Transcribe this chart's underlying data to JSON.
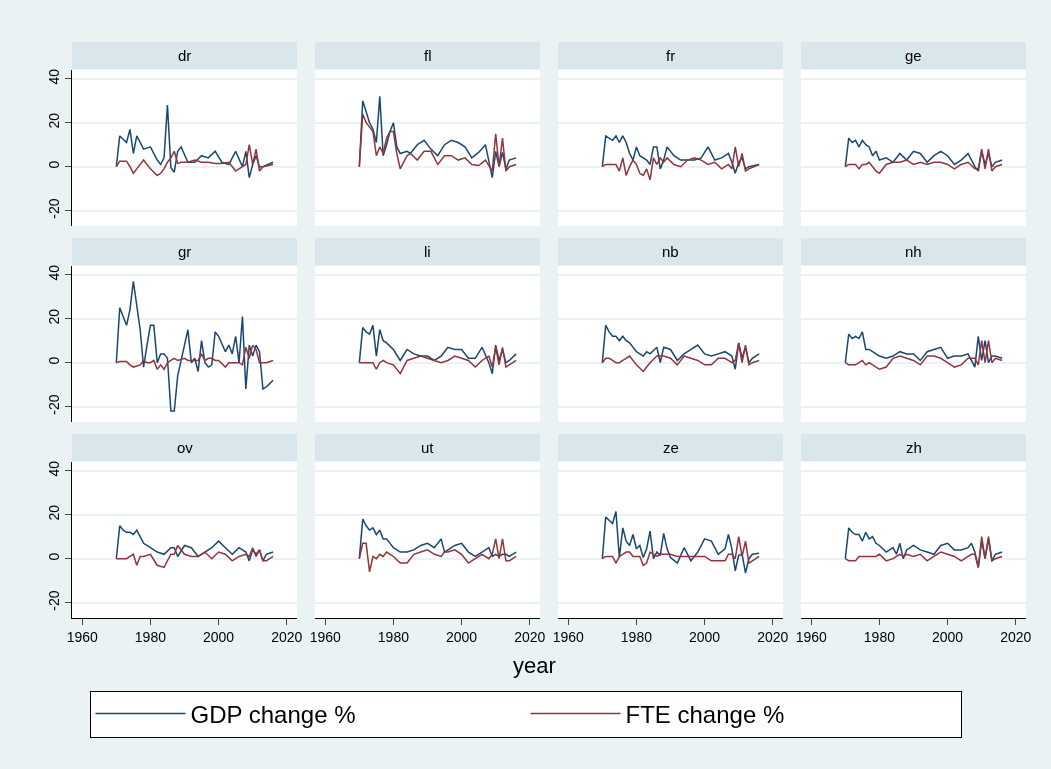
{
  "chart_data": [
    {
      "type": "line",
      "title": "dr",
      "tick_labels": "y",
      "grid": "y",
      "legend": "bottom",
      "xlim": [
        1957,
        2023
      ],
      "ylim": [
        -27,
        44
      ],
      "xticks": [
        1960,
        1980,
        2000,
        2020
      ],
      "yticks": [
        -20,
        0,
        20,
        40
      ],
      "x": [
        1970,
        1971,
        1973,
        1974,
        1975,
        1976,
        1978,
        1980,
        1982,
        1983,
        1984,
        1985,
        1986,
        1987,
        1988,
        1989,
        1991,
        1993,
        1995,
        1997,
        1999,
        2001,
        2003,
        2005,
        2007,
        2008,
        2009,
        2010,
        2011,
        2012,
        2013,
        2016
      ],
      "series": [
        {
          "name": "GDP change %",
          "color": "#1a476f",
          "values": [
            0,
            14,
            11,
            17,
            6,
            14,
            8,
            9,
            3,
            1,
            4,
            28,
            -0.5,
            -2.5,
            7,
            9,
            2,
            2,
            5,
            4,
            7,
            2,
            1,
            7,
            0,
            7,
            -5,
            1,
            5,
            0,
            0,
            2
          ]
        },
        {
          "name": "FTE change %",
          "color": "#90353b",
          "values": [
            0,
            2.5,
            2.5,
            0,
            -3,
            -1,
            3,
            -1,
            -4,
            -3,
            -1,
            2,
            4,
            7,
            1.5,
            2,
            2,
            3,
            2,
            2,
            1.5,
            1.5,
            2,
            -2,
            0,
            1,
            10,
            1,
            8,
            -2,
            0,
            1
          ]
        }
      ]
    },
    {
      "type": "line",
      "title": "fl",
      "tick_labels": false,
      "grid": "y",
      "xlim": [
        1957,
        2023
      ],
      "ylim": [
        -27,
        44
      ],
      "xticks": [
        1960,
        1980,
        2000,
        2020
      ],
      "yticks": [
        -20,
        0,
        20,
        40
      ],
      "x": [
        1970,
        1971,
        1972,
        1973,
        1974,
        1975,
        1976,
        1977,
        1978,
        1979,
        1980,
        1981,
        1982,
        1984,
        1985,
        1987,
        1989,
        1991,
        1993,
        1995,
        1997,
        1999,
        2001,
        2003,
        2005,
        2007,
        2009,
        2010,
        2011,
        2012,
        2013,
        2014,
        2016
      ],
      "series": [
        {
          "color": "#1a476f",
          "values": [
            0,
            30,
            25,
            20,
            17,
            11,
            32,
            5,
            10,
            16,
            20,
            9,
            6,
            7,
            6,
            10,
            12,
            8,
            5,
            10,
            12,
            11,
            9,
            4,
            6.5,
            10,
            -5,
            7,
            0,
            6.5,
            -1,
            3,
            4
          ]
        },
        {
          "color": "#90353b",
          "values": [
            0,
            24,
            20,
            18,
            16,
            5,
            9,
            6,
            13,
            16,
            16,
            6,
            -1,
            5,
            6,
            3,
            7,
            7,
            1,
            5,
            5,
            3,
            4,
            1,
            0.5,
            3,
            -2,
            15,
            0,
            13,
            -2,
            0,
            1
          ]
        }
      ]
    },
    {
      "type": "line",
      "title": "fr",
      "tick_labels": false,
      "grid": "y",
      "xlim": [
        1957,
        2023
      ],
      "ylim": [
        -27,
        44
      ],
      "xticks": [
        1960,
        1980,
        2000,
        2020
      ],
      "yticks": [
        -20,
        0,
        20,
        40
      ],
      "x": [
        1970,
        1971,
        1973,
        1974,
        1975,
        1976,
        1977,
        1978,
        1979,
        1980,
        1981,
        1982,
        1983,
        1984,
        1985,
        1986,
        1987,
        1988,
        1989,
        1991,
        1993,
        1995,
        1997,
        1999,
        2001,
        2003,
        2005,
        2007,
        2008,
        2009,
        2010,
        2011,
        2012,
        2013,
        2016
      ],
      "series": [
        {
          "color": "#1a476f",
          "values": [
            0,
            14,
            12,
            14,
            11,
            14,
            11,
            6,
            3,
            9,
            5,
            4,
            3,
            1,
            9,
            9,
            -1,
            3,
            9,
            5,
            3,
            3,
            3,
            4,
            9,
            3,
            4,
            6,
            2,
            -3,
            2,
            4,
            -1,
            0,
            1
          ]
        },
        {
          "color": "#90353b",
          "values": [
            0,
            1,
            1,
            1,
            -2,
            4,
            -4,
            0,
            3,
            1,
            -3,
            -4,
            -1,
            -6,
            4,
            1,
            4,
            2,
            4,
            1,
            0,
            3,
            4,
            3,
            1,
            2,
            -1,
            1,
            -1,
            9,
            0,
            6,
            -2,
            -1,
            1
          ]
        }
      ]
    },
    {
      "type": "line",
      "title": "ge",
      "tick_labels": false,
      "grid": "y",
      "xlim": [
        1957,
        2023
      ],
      "ylim": [
        -27,
        44
      ],
      "xticks": [
        1960,
        1980,
        2000,
        2020
      ],
      "yticks": [
        -20,
        0,
        20,
        40
      ],
      "x": [
        1970,
        1971,
        1972,
        1973,
        1974,
        1975,
        1976,
        1977,
        1978,
        1979,
        1980,
        1982,
        1984,
        1986,
        1988,
        1990,
        1992,
        1994,
        1996,
        1998,
        2000,
        2002,
        2004,
        2006,
        2008,
        2009,
        2010,
        2011,
        2012,
        2013,
        2014,
        2016
      ],
      "series": [
        {
          "color": "#1a476f",
          "values": [
            0,
            13,
            11,
            12,
            9,
            12,
            10,
            9,
            5,
            7,
            3,
            4,
            2,
            6,
            3,
            7,
            6,
            2,
            5,
            7,
            5,
            1,
            3,
            6,
            0,
            -2,
            7,
            1,
            6,
            0,
            2,
            3
          ]
        },
        {
          "color": "#90353b",
          "values": [
            0,
            1,
            1,
            1,
            -1,
            1,
            1,
            2,
            0,
            -2,
            -3,
            1,
            2,
            2,
            3,
            1,
            2,
            1,
            2,
            2,
            1,
            -1,
            1,
            2,
            -1,
            -1,
            8,
            -1,
            8,
            -2,
            0,
            1
          ]
        }
      ]
    },
    {
      "type": "line",
      "title": "gr",
      "tick_labels": "y",
      "grid": "y",
      "xlim": [
        1957,
        2023
      ],
      "ylim": [
        -27,
        44
      ],
      "xticks": [
        1960,
        1980,
        2000,
        2020
      ],
      "yticks": [
        -20,
        0,
        20,
        40
      ],
      "x": [
        1970,
        1971,
        1973,
        1974,
        1975,
        1977,
        1978,
        1979,
        1980,
        1981,
        1982,
        1983,
        1984,
        1985,
        1986,
        1987,
        1988,
        1990,
        1991,
        1992,
        1993,
        1994,
        1995,
        1996,
        1997,
        1998,
        1999,
        2000,
        2002,
        2003,
        2004,
        2005,
        2006,
        2007,
        2008,
        2009,
        2010,
        2011,
        2012,
        2013,
        2014,
        2016
      ],
      "series": [
        {
          "color": "#1a476f",
          "values": [
            0,
            25,
            17,
            24,
            37,
            15,
            -2,
            8,
            17,
            17,
            0,
            4,
            4,
            2,
            -22,
            -22,
            -6,
            8,
            15,
            0,
            2,
            -4,
            10,
            0,
            -2,
            -1,
            14,
            12,
            5,
            8,
            4,
            12,
            0,
            21,
            -12,
            8,
            3,
            8,
            5,
            -12,
            -11,
            -8
          ]
        },
        {
          "color": "#90353b",
          "values": [
            0,
            0.5,
            0.5,
            -1,
            -2,
            -1,
            1,
            0,
            0,
            1,
            -3,
            -1,
            -3,
            0,
            1,
            2,
            1,
            2,
            1,
            1,
            1,
            1,
            4,
            1,
            2,
            2,
            1,
            1,
            -2,
            0,
            0,
            0,
            0,
            -1,
            7,
            2,
            8,
            6,
            0,
            0,
            0,
            1
          ]
        }
      ]
    },
    {
      "type": "line",
      "title": "li",
      "tick_labels": false,
      "grid": "y",
      "xlim": [
        1957,
        2023
      ],
      "ylim": [
        -27,
        44
      ],
      "xticks": [
        1960,
        1980,
        2000,
        2020
      ],
      "yticks": [
        -20,
        0,
        20,
        40
      ],
      "x": [
        1970,
        1971,
        1972,
        1973,
        1974,
        1975,
        1976,
        1977,
        1978,
        1980,
        1982,
        1984,
        1986,
        1988,
        1990,
        1992,
        1994,
        1996,
        1998,
        2000,
        2002,
        2004,
        2006,
        2008,
        2009,
        2010,
        2011,
        2012,
        2013,
        2014,
        2016
      ],
      "series": [
        {
          "color": "#1a476f",
          "values": [
            0,
            16,
            14,
            13,
            17,
            3,
            15,
            10,
            9,
            6,
            1,
            6,
            4,
            3,
            3,
            1,
            3,
            7,
            6,
            6,
            2,
            2,
            7,
            0,
            -5,
            8,
            1,
            6,
            0,
            1,
            4
          ]
        },
        {
          "color": "#90353b",
          "values": [
            0,
            0,
            0,
            0,
            0,
            -3,
            0,
            1,
            0,
            -1,
            -5,
            1,
            2,
            3,
            2,
            1,
            0,
            1,
            3,
            2,
            1,
            -2,
            1,
            3,
            -2,
            7,
            -1,
            7,
            -2,
            -1,
            1
          ]
        }
      ]
    },
    {
      "type": "line",
      "title": "nb",
      "tick_labels": false,
      "grid": "y",
      "xlim": [
        1957,
        2023
      ],
      "ylim": [
        -27,
        44
      ],
      "xticks": [
        1960,
        1980,
        2000,
        2020
      ],
      "yticks": [
        -20,
        0,
        20,
        40
      ],
      "x": [
        1970,
        1971,
        1972,
        1973,
        1974,
        1975,
        1976,
        1977,
        1978,
        1980,
        1982,
        1983,
        1984,
        1986,
        1987,
        1988,
        1990,
        1992,
        1994,
        1996,
        1998,
        2000,
        2002,
        2004,
        2006,
        2008,
        2009,
        2010,
        2011,
        2012,
        2013,
        2014,
        2016
      ],
      "series": [
        {
          "color": "#1a476f",
          "values": [
            0,
            17,
            14,
            12,
            12,
            10,
            12,
            10,
            9,
            5,
            3,
            5,
            4,
            7,
            0,
            7,
            6,
            1,
            4,
            6,
            8,
            4,
            3,
            4,
            5,
            3,
            -3,
            9,
            2,
            7,
            0,
            2,
            4
          ]
        },
        {
          "color": "#90353b",
          "values": [
            0,
            2,
            2,
            1,
            0,
            0,
            1,
            2,
            3,
            -1,
            -4,
            -2,
            0,
            3,
            3,
            3,
            2,
            -1,
            3,
            2,
            1,
            -1,
            -1,
            2,
            2,
            0,
            1,
            9,
            0,
            8,
            -1,
            0,
            1
          ]
        }
      ]
    },
    {
      "type": "line",
      "title": "nh",
      "tick_labels": false,
      "grid": "y",
      "xlim": [
        1957,
        2023
      ],
      "ylim": [
        -27,
        44
      ],
      "xticks": [
        1960,
        1980,
        2000,
        2020
      ],
      "yticks": [
        -20,
        0,
        20,
        40
      ],
      "x": [
        1970,
        1971,
        1972,
        1973,
        1974,
        1975,
        1976,
        1977,
        1978,
        1980,
        1982,
        1984,
        1986,
        1988,
        1990,
        1992,
        1994,
        1996,
        1998,
        2000,
        2002,
        2004,
        2006,
        2008,
        2009,
        2010,
        2011,
        2012,
        2013,
        2014,
        2016
      ],
      "series": [
        {
          "color": "#1a476f",
          "values": [
            0,
            13,
            11,
            12,
            11,
            14,
            6,
            6,
            5,
            3,
            2,
            3,
            5,
            4,
            4,
            1,
            5,
            6,
            7,
            2,
            3,
            3,
            4,
            -2,
            12,
            1,
            10,
            0,
            3,
            3,
            2
          ]
        },
        {
          "color": "#90353b",
          "values": [
            0,
            -1,
            -1,
            -1,
            0,
            1,
            -1,
            0,
            -1,
            -3,
            -2,
            2,
            3,
            2,
            1,
            -1,
            3,
            3,
            2,
            0,
            -2,
            -1,
            2,
            2,
            -1,
            10,
            0,
            10,
            0,
            2,
            1
          ]
        }
      ]
    },
    {
      "type": "line",
      "title": "ov",
      "grid": "y",
      "xlim": [
        1957,
        2023
      ],
      "ylim": [
        -27,
        44
      ],
      "xticks": [
        1960,
        1980,
        2000,
        2020
      ],
      "yticks": [
        -20,
        0,
        20,
        40
      ],
      "x": [
        1970,
        1971,
        1972,
        1973,
        1974,
        1975,
        1976,
        1977,
        1978,
        1980,
        1982,
        1984,
        1986,
        1987,
        1988,
        1990,
        1992,
        1994,
        1996,
        1998,
        2000,
        2002,
        2004,
        2006,
        2008,
        2009,
        2010,
        2011,
        2012,
        2013,
        2014,
        2016
      ],
      "series": [
        {
          "color": "#1a476f",
          "values": [
            0,
            15,
            13,
            12,
            12,
            11,
            13,
            10,
            7,
            5,
            3,
            2,
            5,
            5,
            1,
            6,
            5,
            1,
            3,
            5,
            8,
            5,
            2,
            5,
            3,
            -1,
            4,
            2,
            4,
            -1,
            2,
            3
          ]
        },
        {
          "color": "#90353b",
          "values": [
            0,
            0,
            0,
            0,
            1,
            2,
            -3,
            1,
            1,
            2,
            -3,
            -4,
            2,
            2,
            6,
            2,
            1,
            1,
            3,
            0,
            3,
            2,
            -1,
            1,
            2,
            1,
            5,
            1,
            4,
            -1,
            -1,
            1
          ]
        }
      ]
    },
    {
      "type": "line",
      "title": "ut",
      "tick_labels": "x",
      "grid": "y",
      "xlabel": "year",
      "xlim": [
        1957,
        2023
      ],
      "ylim": [
        -27,
        44
      ],
      "xticks": [
        1960,
        1980,
        2000,
        2020
      ],
      "yticks": [
        -20,
        0,
        20,
        40
      ],
      "x": [
        1970,
        1971,
        1972,
        1973,
        1974,
        1975,
        1976,
        1977,
        1978,
        1980,
        1982,
        1984,
        1986,
        1988,
        1990,
        1992,
        1994,
        1995,
        1996,
        1998,
        2000,
        2002,
        2004,
        2006,
        2008,
        2009,
        2010,
        2011,
        2012,
        2013,
        2014,
        2016
      ],
      "series": [
        {
          "color": "#1a476f",
          "values": [
            0,
            18,
            15,
            13,
            14,
            11,
            13,
            9,
            9,
            5,
            3,
            3,
            4,
            6,
            7,
            5,
            9,
            3,
            4,
            6,
            7,
            3,
            1,
            3,
            5,
            1,
            2,
            1,
            2,
            2,
            1,
            3
          ]
        },
        {
          "color": "#90353b",
          "values": [
            0,
            7,
            7,
            -6,
            1,
            0,
            2,
            1,
            3,
            1,
            -2,
            -2,
            2,
            3,
            4,
            2,
            1,
            3,
            3,
            4,
            2,
            -2,
            0,
            2,
            0,
            2,
            9,
            0,
            9,
            -1,
            -1,
            1
          ]
        }
      ]
    },
    {
      "type": "line",
      "title": "ze",
      "tick_labels": "x",
      "grid": "y",
      "xlim": [
        1957,
        2023
      ],
      "ylim": [
        -27,
        44
      ],
      "xticks": [
        1960,
        1980,
        2000,
        2020
      ],
      "yticks": [
        -20,
        0,
        20,
        40
      ],
      "x": [
        1970,
        1971,
        1973,
        1974,
        1975,
        1976,
        1977,
        1978,
        1979,
        1980,
        1981,
        1982,
        1983,
        1984,
        1985,
        1986,
        1987,
        1988,
        1989,
        1990,
        1992,
        1994,
        1996,
        1998,
        2000,
        2002,
        2004,
        2006,
        2007,
        2008,
        2009,
        2010,
        2011,
        2012,
        2013,
        2014,
        2016
      ],
      "series": [
        {
          "color": "#1a476f",
          "values": [
            0,
            19,
            16,
            21.5,
            0.5,
            14,
            8,
            6,
            11,
            4.5,
            6,
            0.5,
            4.5,
            12.5,
            0,
            3,
            1.5,
            11.5,
            4.5,
            0.5,
            -2,
            5,
            -1,
            3,
            9,
            8,
            2,
            4.5,
            11,
            4.5,
            -5.5,
            1.5,
            2,
            -6.5,
            0,
            2,
            2.5
          ]
        },
        {
          "color": "#90353b",
          "values": [
            0,
            1,
            1,
            -2,
            1,
            2,
            3,
            3,
            1,
            1,
            1,
            -3,
            -2,
            3,
            2,
            1,
            2,
            2,
            2,
            2,
            1,
            1,
            1,
            1,
            1,
            -1,
            -1,
            -1,
            2,
            2,
            0,
            10,
            1,
            8,
            -2,
            -1,
            1
          ]
        }
      ]
    },
    {
      "type": "line",
      "title": "zh",
      "tick_labels": "x",
      "grid": "y",
      "xlim": [
        1957,
        2023
      ],
      "ylim": [
        -27,
        44
      ],
      "xticks": [
        1960,
        1980,
        2000,
        2020
      ],
      "yticks": [
        -20,
        0,
        20,
        40
      ],
      "x": [
        1970,
        1971,
        1972,
        1973,
        1974,
        1975,
        1976,
        1977,
        1978,
        1979,
        1980,
        1982,
        1984,
        1985,
        1986,
        1987,
        1988,
        1990,
        1992,
        1994,
        1996,
        1998,
        2000,
        2002,
        2004,
        2006,
        2007,
        2008,
        2009,
        2010,
        2011,
        2012,
        2013,
        2014,
        2016
      ],
      "series": [
        {
          "color": "#1a476f",
          "values": [
            0,
            14,
            12,
            11,
            11,
            8,
            12,
            9,
            10,
            7,
            6,
            3,
            5,
            2,
            7,
            0,
            4,
            6,
            4,
            3,
            2,
            6,
            7,
            4,
            4,
            5,
            7,
            3,
            -4,
            8,
            0,
            9,
            -1,
            2,
            3
          ]
        },
        {
          "color": "#90353b",
          "values": [
            0,
            -1,
            -1,
            -1,
            1,
            1,
            1,
            1,
            1,
            1,
            2,
            -1,
            0,
            1,
            2,
            1,
            2,
            1,
            2,
            -1,
            1,
            3,
            2,
            1,
            -1,
            1,
            2,
            2,
            -4,
            10,
            0,
            10,
            -1,
            0,
            1
          ]
        }
      ]
    }
  ]
}
